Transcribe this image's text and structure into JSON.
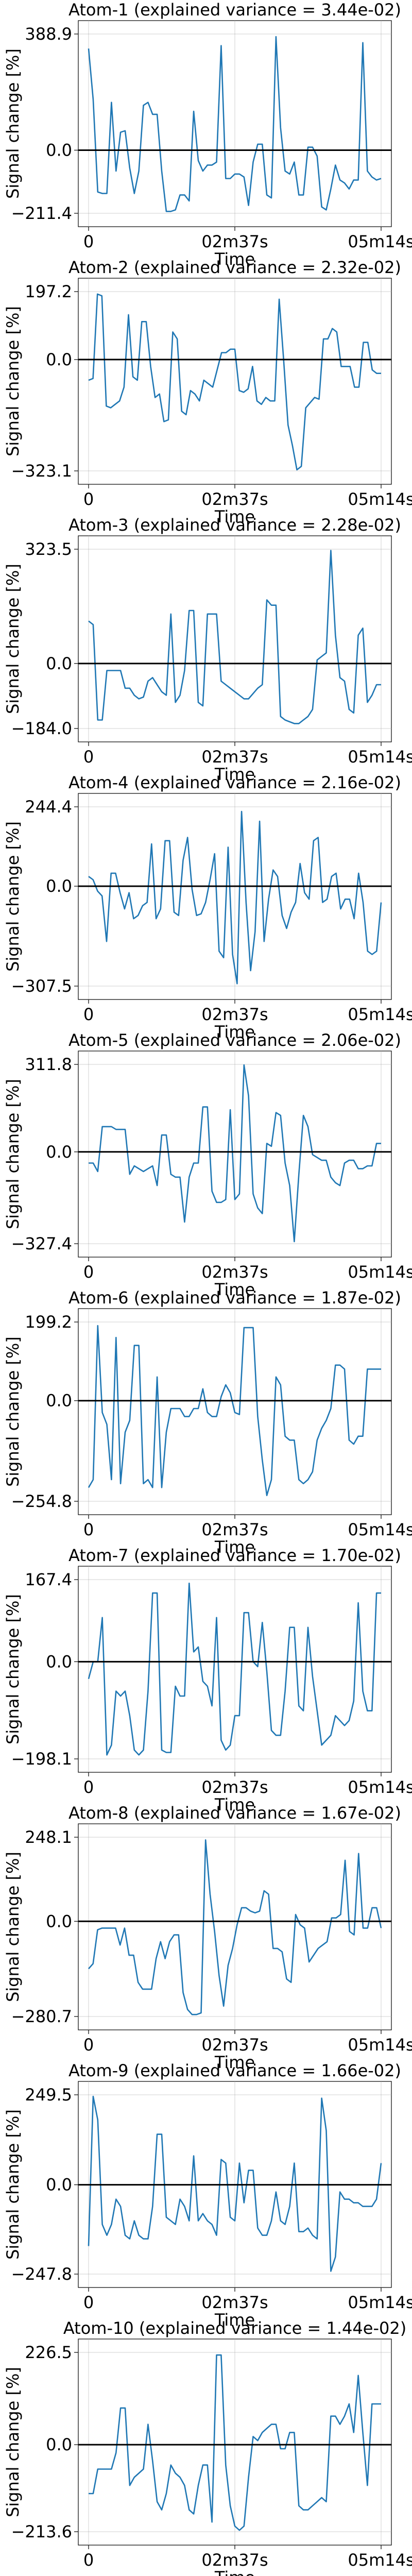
{
  "chart_data": [
    {
      "type": "line",
      "title": "Atom-1 (explained variance = 3.44e-02)",
      "xlabel": "Time",
      "ylabel": "Signal change [%]",
      "xtick_labels": [
        "0",
        "02m37s",
        "05m14s"
      ],
      "ytick_labels": [
        "388.9",
        "0.0",
        "-211.4"
      ],
      "ylim": [
        -211.4,
        388.9
      ],
      "grid": true,
      "series": [
        {
          "values": [
            340,
            170,
            -140,
            -145,
            -145,
            160,
            -70,
            60,
            65,
            -60,
            -145,
            -70,
            150,
            160,
            120,
            120,
            -70,
            -205,
            -205,
            -200,
            -150,
            -150,
            -170,
            130,
            -35,
            -70,
            -50,
            -50,
            -40,
            350,
            -95,
            -95,
            -80,
            -80,
            -90,
            -185,
            -40,
            20,
            20,
            -150,
            -160,
            380,
            75,
            -70,
            -80,
            -40,
            -150,
            -150,
            10,
            10,
            -20,
            -190,
            -200,
            -130,
            -50,
            -100,
            -110,
            -130,
            -100,
            -100,
            360,
            -70,
            -90,
            -100,
            -95
          ]
        }
      ]
    },
    {
      "type": "line",
      "title": "Atom-2 (explained variance = 2.32e-02)",
      "xlabel": "Time",
      "ylabel": "Signal change [%]",
      "xtick_labels": [
        "0",
        "02m37s",
        "05m14s"
      ],
      "ytick_labels": [
        "197.2",
        "0.0",
        "-323.1"
      ],
      "ylim": [
        -323.1,
        197.2
      ],
      "grid": true,
      "series": [
        {
          "values": [
            -60,
            -55,
            190,
            185,
            -135,
            -140,
            -130,
            -120,
            -80,
            130,
            -50,
            -60,
            110,
            110,
            -20,
            -110,
            -100,
            -180,
            -175,
            80,
            60,
            -150,
            -160,
            -90,
            -100,
            -120,
            -60,
            -70,
            -80,
            -30,
            20,
            20,
            30,
            30,
            -90,
            -95,
            -85,
            -20,
            -120,
            -130,
            -110,
            -120,
            -120,
            175,
            0,
            -190,
            -250,
            -320,
            -310,
            -140,
            -125,
            -110,
            -115,
            60,
            60,
            90,
            80,
            -20,
            -20,
            -20,
            -80,
            -80,
            50,
            50,
            -30,
            -40,
            -40
          ]
        }
      ]
    },
    {
      "type": "line",
      "title": "Atom-3 (explained variance = 2.28e-02)",
      "xlabel": "Time",
      "ylabel": "Signal change [%]",
      "xtick_labels": [
        "0",
        "02m37s",
        "05m14s"
      ],
      "ytick_labels": [
        "323.5",
        "0.0",
        "-184.0"
      ],
      "ylim": [
        -184.0,
        323.5
      ],
      "grid": true,
      "series": [
        {
          "values": [
            120,
            110,
            -160,
            -160,
            -20,
            -20,
            -20,
            -20,
            -70,
            -70,
            -90,
            -100,
            -95,
            -50,
            -40,
            -60,
            -80,
            -90,
            140,
            -110,
            -90,
            -20,
            150,
            150,
            -110,
            -120,
            140,
            140,
            140,
            -50,
            -60,
            -70,
            -80,
            -90,
            -100,
            -100,
            -85,
            -70,
            -60,
            180,
            165,
            165,
            -150,
            -160,
            -165,
            -170,
            -170,
            -160,
            -150,
            -130,
            10,
            20,
            30,
            320,
            80,
            -40,
            -50,
            -130,
            -140,
            80,
            100,
            -110,
            -90,
            -60,
            -60
          ]
        }
      ]
    },
    {
      "type": "line",
      "title": "Atom-4 (explained variance = 2.16e-02)",
      "xlabel": "Time",
      "ylabel": "Signal change [%]",
      "xtick_labels": [
        "0",
        "02m37s",
        "05m14s"
      ],
      "ytick_labels": [
        "244.4",
        "0.0",
        "-307.5"
      ],
      "ylim": [
        -307.5,
        244.4
      ],
      "grid": true,
      "series": [
        {
          "values": [
            30,
            20,
            -15,
            -30,
            -170,
            40,
            40,
            -20,
            -70,
            -20,
            -100,
            -90,
            -60,
            -50,
            130,
            -100,
            -70,
            140,
            140,
            -80,
            -90,
            80,
            150,
            -10,
            -90,
            -85,
            -50,
            20,
            100,
            -200,
            -220,
            120,
            -210,
            -300,
            230,
            -50,
            -260,
            -140,
            200,
            -170,
            -40,
            50,
            30,
            -90,
            -130,
            -80,
            -50,
            70,
            -20,
            -40,
            140,
            150,
            -50,
            -40,
            30,
            40,
            -70,
            -40,
            -40,
            -100,
            40,
            -50,
            -200,
            -210,
            -200,
            -50
          ]
        }
      ]
    },
    {
      "type": "line",
      "title": "Atom-5 (explained variance = 2.06e-02)",
      "xlabel": "Time",
      "ylabel": "Signal change [%]",
      "xtick_labels": [
        "0",
        "02m37s",
        "05m14s"
      ],
      "ytick_labels": [
        "311.8",
        "0.0",
        "-327.4"
      ],
      "ylim": [
        -327.4,
        311.8
      ],
      "grid": true,
      "series": [
        {
          "values": [
            -40,
            -40,
            -70,
            90,
            90,
            90,
            80,
            80,
            80,
            -80,
            -50,
            -60,
            -70,
            -60,
            -50,
            -120,
            60,
            60,
            -80,
            -90,
            -90,
            -250,
            -90,
            -40,
            -40,
            160,
            160,
            -140,
            -180,
            -180,
            -170,
            150,
            -170,
            -150,
            310,
            200,
            -150,
            -200,
            -220,
            30,
            20,
            140,
            130,
            -40,
            -120,
            -320,
            -80,
            130,
            90,
            -10,
            -20,
            -30,
            -30,
            -90,
            -110,
            -120,
            -40,
            -30,
            -30,
            -60,
            -60,
            -50,
            -50,
            30,
            30
          ]
        }
      ]
    },
    {
      "type": "line",
      "title": "Atom-6 (explained variance = 1.87e-02)",
      "xlabel": "Time",
      "ylabel": "Signal change [%]",
      "xtick_labels": [
        "0",
        "02m37s",
        "05m14s"
      ],
      "ytick_labels": [
        "199.2",
        "0.0",
        "-254.8"
      ],
      "ylim": [
        -254.8,
        199.2
      ],
      "grid": true,
      "series": [
        {
          "values": [
            -220,
            -200,
            190,
            -30,
            -60,
            -200,
            160,
            -210,
            -80,
            -50,
            140,
            140,
            -210,
            -200,
            -220,
            60,
            -220,
            -80,
            -20,
            -20,
            -20,
            -40,
            -40,
            -20,
            -20,
            30,
            -30,
            -40,
            -40,
            10,
            40,
            20,
            -30,
            -35,
            185,
            185,
            185,
            -40,
            -150,
            -240,
            -200,
            60,
            40,
            -90,
            -100,
            -100,
            -200,
            -210,
            -200,
            -180,
            -100,
            -70,
            -50,
            -20,
            90,
            90,
            80,
            -100,
            -110,
            -90,
            -90,
            80,
            80,
            80,
            80
          ]
        }
      ]
    },
    {
      "type": "line",
      "title": "Atom-7 (explained variance = 1.70e-02)",
      "xlabel": "Time",
      "ylabel": "Signal change [%]",
      "xtick_labels": [
        "0",
        "02m37s",
        "05m14s"
      ],
      "ytick_labels": [
        "167.4",
        "0.0",
        "-198.1"
      ],
      "ylim": [
        -198.1,
        167.4
      ],
      "grid": true,
      "series": [
        {
          "values": [
            -35,
            0,
            0,
            90,
            -190,
            -170,
            -60,
            -70,
            -60,
            -110,
            -180,
            -190,
            -180,
            -60,
            140,
            140,
            -180,
            -185,
            -185,
            -50,
            -70,
            -70,
            160,
            20,
            30,
            -40,
            -50,
            -90,
            90,
            -160,
            -180,
            -170,
            -110,
            -110,
            100,
            100,
            0,
            -10,
            80,
            -20,
            -140,
            -150,
            -150,
            -60,
            70,
            70,
            -90,
            -100,
            70,
            -30,
            -100,
            -170,
            -160,
            -150,
            -110,
            -120,
            -130,
            -120,
            -80,
            120,
            -60,
            -100,
            -100,
            140,
            140
          ]
        }
      ]
    },
    {
      "type": "line",
      "title": "Atom-8 (explained variance = 1.67e-02)",
      "xlabel": "Time",
      "ylabel": "Signal change [%]",
      "xtick_labels": [
        "0",
        "02m37s",
        "05m14s"
      ],
      "ytick_labels": [
        "248.1",
        "0.0",
        "-280.7"
      ],
      "ylim": [
        -280.7,
        248.1
      ],
      "grid": true,
      "series": [
        {
          "values": [
            -140,
            -125,
            -25,
            -20,
            -20,
            -20,
            -20,
            -70,
            -20,
            -100,
            -100,
            -180,
            -200,
            -200,
            -200,
            -110,
            -60,
            -110,
            -60,
            -40,
            -40,
            -210,
            -260,
            -275,
            -275,
            -270,
            240,
            80,
            -30,
            -160,
            -250,
            -130,
            -80,
            -10,
            40,
            40,
            30,
            25,
            30,
            90,
            80,
            -80,
            -80,
            -90,
            -170,
            -180,
            20,
            -10,
            -20,
            -120,
            -100,
            -80,
            -70,
            -60,
            10,
            10,
            20,
            180,
            -30,
            -40,
            200,
            -20,
            -20,
            40,
            40,
            -20
          ]
        }
      ]
    },
    {
      "type": "line",
      "title": "Atom-9 (explained variance = 1.66e-02)",
      "xlabel": "Time",
      "ylabel": "Signal change [%]",
      "xtick_labels": [
        "0",
        "02m37s",
        "05m14s"
      ],
      "ytick_labels": [
        "249.5",
        "0.0",
        "-247.8"
      ],
      "ylim": [
        -247.8,
        249.5
      ],
      "grid": true,
      "series": [
        {
          "values": [
            -170,
            245,
            180,
            -110,
            -140,
            -110,
            -40,
            -60,
            -140,
            -150,
            -100,
            -140,
            -150,
            -150,
            -60,
            140,
            140,
            -90,
            -100,
            -110,
            -40,
            -60,
            -100,
            80,
            -100,
            -80,
            -100,
            -110,
            -140,
            70,
            60,
            -90,
            -100,
            60,
            -50,
            40,
            40,
            -120,
            -140,
            -140,
            -100,
            -20,
            -100,
            -110,
            -60,
            60,
            -130,
            -130,
            -120,
            -140,
            -150,
            240,
            150,
            -240,
            -200,
            -20,
            -40,
            -40,
            -50,
            -50,
            -60,
            -60,
            -60,
            -40,
            60
          ]
        }
      ]
    },
    {
      "type": "line",
      "title": "Atom-10 (explained variance = 1.44e-02)",
      "xlabel": "Time",
      "ylabel": "Signal change [%]",
      "xtick_labels": [
        "0",
        "02m37s",
        "05m14s"
      ],
      "ytick_labels": [
        "226.5",
        "0.0",
        "-213.6"
      ],
      "ylim": [
        -213.6,
        226.5
      ],
      "grid": true,
      "series": [
        {
          "values": [
            -120,
            -120,
            -60,
            -60,
            -60,
            -60,
            -20,
            90,
            90,
            -100,
            -80,
            -70,
            -60,
            50,
            -40,
            -140,
            -160,
            -120,
            -50,
            -70,
            -80,
            -100,
            -160,
            -170,
            -100,
            -50,
            -50,
            -190,
            220,
            220,
            -50,
            -150,
            -200,
            -210,
            -200,
            -80,
            20,
            10,
            30,
            40,
            50,
            50,
            -10,
            -10,
            30,
            30,
            -150,
            -160,
            -160,
            -150,
            -140,
            -130,
            -140,
            70,
            70,
            50,
            70,
            100,
            30,
            170,
            30,
            -100,
            100,
            100,
            100
          ]
        }
      ]
    }
  ]
}
